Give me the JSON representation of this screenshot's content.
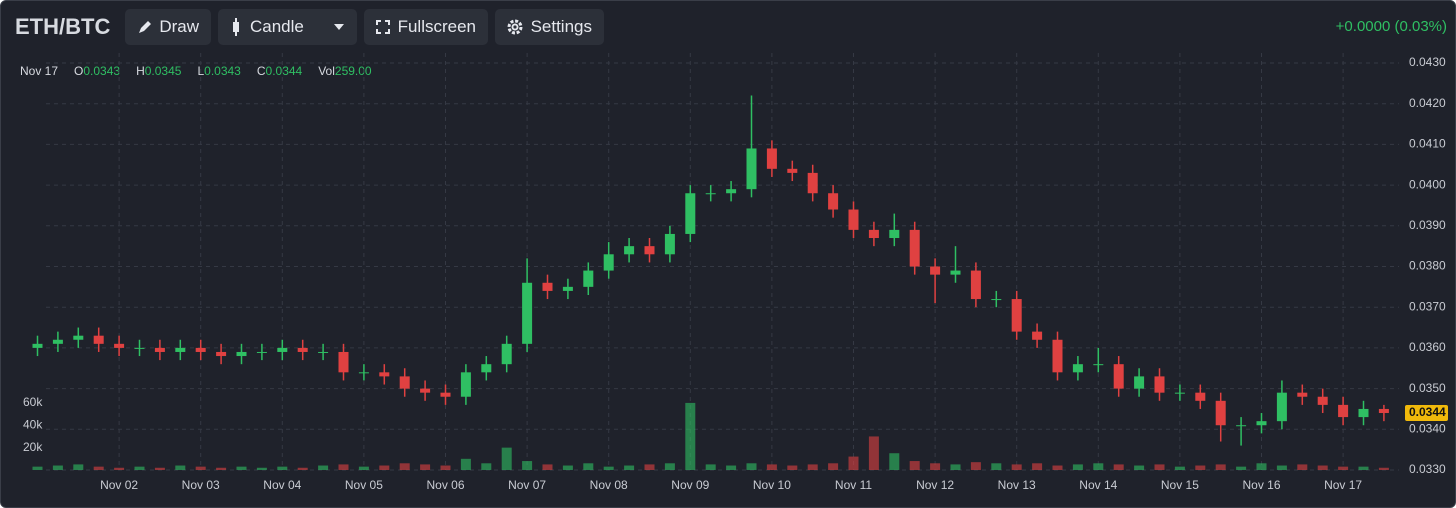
{
  "toolbar": {
    "title": "ETH/BTC",
    "buttons": [
      "Draw",
      "Candle",
      "Fullscreen",
      "Settings"
    ],
    "change": "+0.0000 (0.03%)"
  },
  "info": {
    "date": "Nov 17",
    "items": [
      {
        "label": "O",
        "value": "0.0343"
      },
      {
        "label": "H",
        "value": "0.0345"
      },
      {
        "label": "L",
        "value": "0.0343"
      },
      {
        "label": "C",
        "value": "0.0344"
      },
      {
        "label": "Vol",
        "value": "259.00"
      }
    ]
  },
  "chart_data": {
    "type": "candlestick",
    "categories": [
      null,
      null,
      null,
      null,
      "Nov 02",
      null,
      null,
      null,
      "Nov 03",
      null,
      null,
      null,
      "Nov 04",
      null,
      null,
      null,
      "Nov 05",
      null,
      null,
      null,
      "Nov 06",
      null,
      null,
      null,
      "Nov 07",
      null,
      null,
      null,
      "Nov 08",
      null,
      null,
      null,
      "Nov 09",
      null,
      null,
      null,
      "Nov 10",
      null,
      null,
      null,
      "Nov 11",
      null,
      null,
      null,
      "Nov 12",
      null,
      null,
      null,
      "Nov 13",
      null,
      null,
      null,
      "Nov 14",
      null,
      null,
      null,
      "Nov 15",
      null,
      null,
      null,
      "Nov 16",
      null,
      null,
      null,
      "Nov 17",
      null,
      null
    ],
    "open": [
      0.036,
      0.0361,
      0.0362,
      0.0363,
      0.0361,
      0.036,
      0.036,
      0.0359,
      0.036,
      0.0359,
      0.0358,
      0.0359,
      0.0359,
      0.036,
      0.0359,
      0.0359,
      0.0354,
      0.0354,
      0.0353,
      0.035,
      0.0349,
      0.0348,
      0.0354,
      0.0356,
      0.0361,
      0.0376,
      0.0374,
      0.0375,
      0.0379,
      0.0383,
      0.0385,
      0.0383,
      0.0388,
      0.0398,
      0.0398,
      0.0399,
      0.0409,
      0.0404,
      0.0403,
      0.0398,
      0.0394,
      0.0389,
      0.0387,
      0.0389,
      0.038,
      0.0378,
      0.0379,
      0.0372,
      0.0372,
      0.0364,
      0.0362,
      0.0354,
      0.0356,
      0.0356,
      0.035,
      0.0353,
      0.0349,
      0.0349,
      0.0347,
      0.0341,
      0.0341,
      0.0342,
      0.0349,
      0.0348,
      0.0346,
      0.0343,
      0.0345
    ],
    "high": [
      0.0363,
      0.0364,
      0.0365,
      0.0365,
      0.0363,
      0.0362,
      0.0362,
      0.0362,
      0.0362,
      0.0361,
      0.0361,
      0.0361,
      0.0362,
      0.0362,
      0.0361,
      0.0361,
      0.0356,
      0.0356,
      0.0355,
      0.0352,
      0.0351,
      0.0356,
      0.0358,
      0.0363,
      0.0382,
      0.0378,
      0.0377,
      0.0381,
      0.0386,
      0.0387,
      0.0387,
      0.039,
      0.04,
      0.04,
      0.0401,
      0.0422,
      0.0411,
      0.0406,
      0.0405,
      0.04,
      0.0396,
      0.0391,
      0.0393,
      0.0391,
      0.0382,
      0.0385,
      0.0381,
      0.0374,
      0.0374,
      0.0366,
      0.0364,
      0.0358,
      0.036,
      0.0358,
      0.0355,
      0.0355,
      0.0351,
      0.0351,
      0.0349,
      0.0343,
      0.0344,
      0.0352,
      0.0351,
      0.035,
      0.0348,
      0.0347,
      0.0346
    ],
    "low": [
      0.0358,
      0.0359,
      0.036,
      0.0359,
      0.0358,
      0.0358,
      0.0357,
      0.0357,
      0.0357,
      0.0356,
      0.0356,
      0.0357,
      0.0357,
      0.0357,
      0.0357,
      0.0352,
      0.0352,
      0.0351,
      0.0348,
      0.0347,
      0.0346,
      0.0346,
      0.0352,
      0.0354,
      0.0359,
      0.0372,
      0.0372,
      0.0373,
      0.0377,
      0.0381,
      0.0381,
      0.0381,
      0.0386,
      0.0396,
      0.0396,
      0.0397,
      0.0402,
      0.0401,
      0.0396,
      0.0392,
      0.0387,
      0.0385,
      0.0385,
      0.0378,
      0.0371,
      0.0376,
      0.037,
      0.037,
      0.0362,
      0.036,
      0.0352,
      0.0352,
      0.0354,
      0.0348,
      0.0348,
      0.0347,
      0.0347,
      0.0345,
      0.0337,
      0.0336,
      0.0339,
      0.034,
      0.0346,
      0.0344,
      0.0341,
      0.0341,
      0.0342
    ],
    "close": [
      0.0361,
      0.0362,
      0.0363,
      0.0361,
      0.036,
      0.036,
      0.0359,
      0.036,
      0.0359,
      0.0358,
      0.0359,
      0.0359,
      0.036,
      0.0359,
      0.0359,
      0.0354,
      0.0354,
      0.0353,
      0.035,
      0.0349,
      0.0348,
      0.0354,
      0.0356,
      0.0361,
      0.0376,
      0.0374,
      0.0375,
      0.0379,
      0.0383,
      0.0385,
      0.0383,
      0.0388,
      0.0398,
      0.0398,
      0.0399,
      0.0409,
      0.0404,
      0.0403,
      0.0398,
      0.0394,
      0.0389,
      0.0387,
      0.0389,
      0.038,
      0.0378,
      0.0379,
      0.0372,
      0.0372,
      0.0364,
      0.0362,
      0.0354,
      0.0356,
      0.0356,
      0.035,
      0.0353,
      0.0349,
      0.0349,
      0.0347,
      0.0341,
      0.0341,
      0.0342,
      0.0349,
      0.0348,
      0.0346,
      0.0343,
      0.0345,
      0.0344
    ],
    "volume": [
      3000,
      4000,
      5000,
      3000,
      2000,
      3000,
      2000,
      4000,
      3000,
      2000,
      3000,
      2000,
      3000,
      2000,
      4000,
      5000,
      3000,
      4000,
      6000,
      5000,
      4000,
      10000,
      6000,
      20000,
      8000,
      5000,
      4000,
      6000,
      3000,
      4000,
      5000,
      6000,
      60000,
      5000,
      4000,
      6000,
      5000,
      4000,
      5000,
      6000,
      12000,
      30000,
      15000,
      8000,
      6000,
      5000,
      7000,
      6000,
      5000,
      6000,
      4000,
      5000,
      6000,
      5000,
      4000,
      5000,
      3000,
      4000,
      5000,
      3000,
      6000,
      4000,
      5000,
      4000,
      3000,
      3000,
      2000
    ],
    "up_color": "#2fbf63",
    "down_color": "#e04141",
    "ylim": [
      0.033,
      0.043
    ],
    "yticks": [
      {
        "value": 0.033,
        "label": "0.0330"
      },
      {
        "value": 0.034,
        "label": "0.0340"
      },
      {
        "value": 0.035,
        "label": "0.0350"
      },
      {
        "value": 0.036,
        "label": "0.0360"
      },
      {
        "value": 0.037,
        "label": "0.0370"
      },
      {
        "value": 0.038,
        "label": "0.0380"
      },
      {
        "value": 0.039,
        "label": "0.0390"
      },
      {
        "value": 0.04,
        "label": "0.0400"
      },
      {
        "value": 0.041,
        "label": "0.0410"
      },
      {
        "value": 0.042,
        "label": "0.0420"
      },
      {
        "value": 0.043,
        "label": "0.0430"
      }
    ],
    "y2lim": [
      0,
      364000
    ],
    "y2ticks": [
      {
        "value": 20000,
        "label": "20k"
      },
      {
        "value": 40000,
        "label": "40k"
      },
      {
        "value": 60000,
        "label": "60k"
      }
    ],
    "grid": true
  }
}
